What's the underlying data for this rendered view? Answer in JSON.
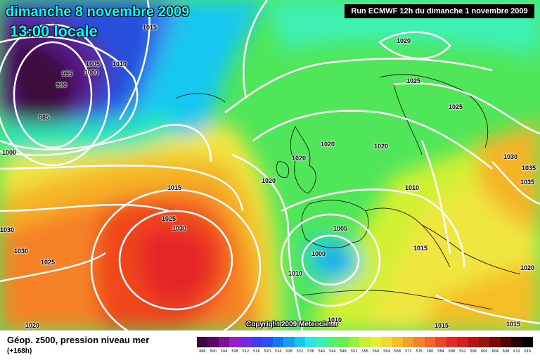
{
  "header": {
    "date": "dimanche 8 novembre 2009",
    "time": "13:00 locale",
    "run": "Run ECMWF 12h du dimanche 1 novembre 2009"
  },
  "copyright": "Copyright 2009 Meteociel.fr",
  "legend": {
    "title": "Géop. z500, pression niveau mer",
    "subtitle": "(+168h)",
    "scale_labels": [
      "496",
      "500",
      "504",
      "508",
      "512",
      "516",
      "520",
      "524",
      "528",
      "532",
      "536",
      "540",
      "544",
      "548",
      "552",
      "556",
      "560",
      "564",
      "568",
      "572",
      "576",
      "580",
      "584",
      "588",
      "592",
      "596",
      "600",
      "604",
      "608",
      "612",
      "616"
    ],
    "scale_colors": [
      "#3c0a3c",
      "#5a0a64",
      "#7a1496",
      "#9a1ec8",
      "#7828dc",
      "#3c3cf0",
      "#2850f5",
      "#1478f5",
      "#14a0f0",
      "#14c8f0",
      "#28e6e6",
      "#3cf0b4",
      "#50f078",
      "#64f050",
      "#96f03c",
      "#c8f032",
      "#e6f032",
      "#f0dc32",
      "#f5be28",
      "#f5a028",
      "#f58228",
      "#f56428",
      "#f04628",
      "#e62828",
      "#d21e1e",
      "#b41414",
      "#96140a",
      "#780a0a",
      "#500505",
      "#280000",
      "#000000"
    ]
  },
  "isobars": [
    "1015",
    "1005",
    "1010",
    "1000",
    "995",
    "990",
    "985",
    "1000",
    "1015",
    "1025",
    "1030",
    "1030",
    "1030",
    "1025",
    "1020",
    "1020",
    "1020",
    "1020",
    "1025",
    "1020",
    "1025",
    "1010",
    "1005",
    "1000",
    "1010",
    "1010",
    "1015",
    "1015",
    "1015",
    "1020",
    "1030",
    "1035",
    "1035",
    "1020"
  ]
}
